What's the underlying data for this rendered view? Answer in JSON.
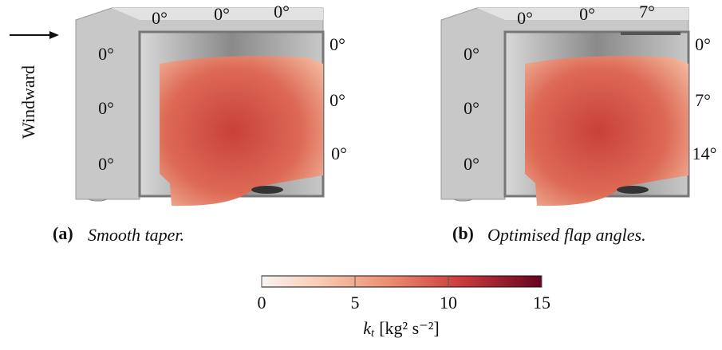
{
  "panels": [
    {
      "tag": "(a)",
      "caption": "Smooth taper.",
      "top_angles": [
        "0°",
        "0°",
        "0°"
      ],
      "left_angles": [
        "0°",
        "0°",
        "0°"
      ],
      "right_angles": [
        "0°",
        "0°",
        "0°"
      ]
    },
    {
      "tag": "(b)",
      "caption": "Optimised flap angles.",
      "top_angles": [
        "0°",
        "0°",
        "7°"
      ],
      "left_angles": [
        "0°",
        "0°",
        "0°"
      ],
      "right_angles": [
        "0°",
        "7°",
        "14°"
      ]
    }
  ],
  "windward": "Windward",
  "colorbar": {
    "lim": [
      0,
      15
    ],
    "ticks": [
      0,
      5,
      10,
      15
    ],
    "label_symbol": "k",
    "label_subscript": "t",
    "label_unit": "[kg² s⁻²]"
  }
}
